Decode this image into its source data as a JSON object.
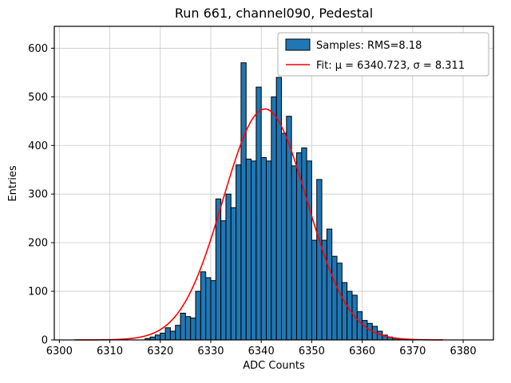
{
  "figure": {
    "window_title": "Run 661, channel090, Pedestal"
  },
  "legend": [
    {
      "label": "Samples: RMS=8.18",
      "marker": "patch"
    },
    {
      "label": "Fit: μ = 6340.723, σ = 8.311",
      "marker": "line"
    }
  ],
  "colors": {
    "bar": "#1f77b4",
    "bar_edge": "#000000",
    "fit": "#ff0000",
    "grid": "#c9c9c9",
    "spine": "#000000",
    "background": "#ffffff"
  },
  "chart_data": {
    "type": "bar",
    "subtype": "histogram",
    "title": "Run 661, channel090, Pedestal",
    "xlabel": "ADC Counts",
    "ylabel": "Entries",
    "xlim": [
      6299,
      6386
    ],
    "ylim": [
      0,
      645
    ],
    "xticks": [
      6300,
      6310,
      6320,
      6330,
      6340,
      6350,
      6360,
      6370,
      6380
    ],
    "yticks": [
      0,
      100,
      200,
      300,
      400,
      500,
      600
    ],
    "grid": true,
    "legend_position": "upper right",
    "bin_start": 6317,
    "bin_width": 1,
    "values": [
      3,
      6,
      10,
      14,
      25,
      18,
      30,
      55,
      48,
      45,
      100,
      140,
      128,
      122,
      290,
      245,
      300,
      272,
      360,
      570,
      372,
      368,
      520,
      375,
      368,
      500,
      540,
      425,
      460,
      358,
      385,
      395,
      368,
      205,
      330,
      205,
      228,
      172,
      158,
      118,
      100,
      92,
      58,
      40,
      34,
      28,
      18,
      10,
      6,
      3,
      2
    ],
    "fit": {
      "mu": 6340.723,
      "sigma": 8.311,
      "amplitude": 475,
      "range": [
        6303,
        6376
      ],
      "rms": 8.18
    }
  }
}
